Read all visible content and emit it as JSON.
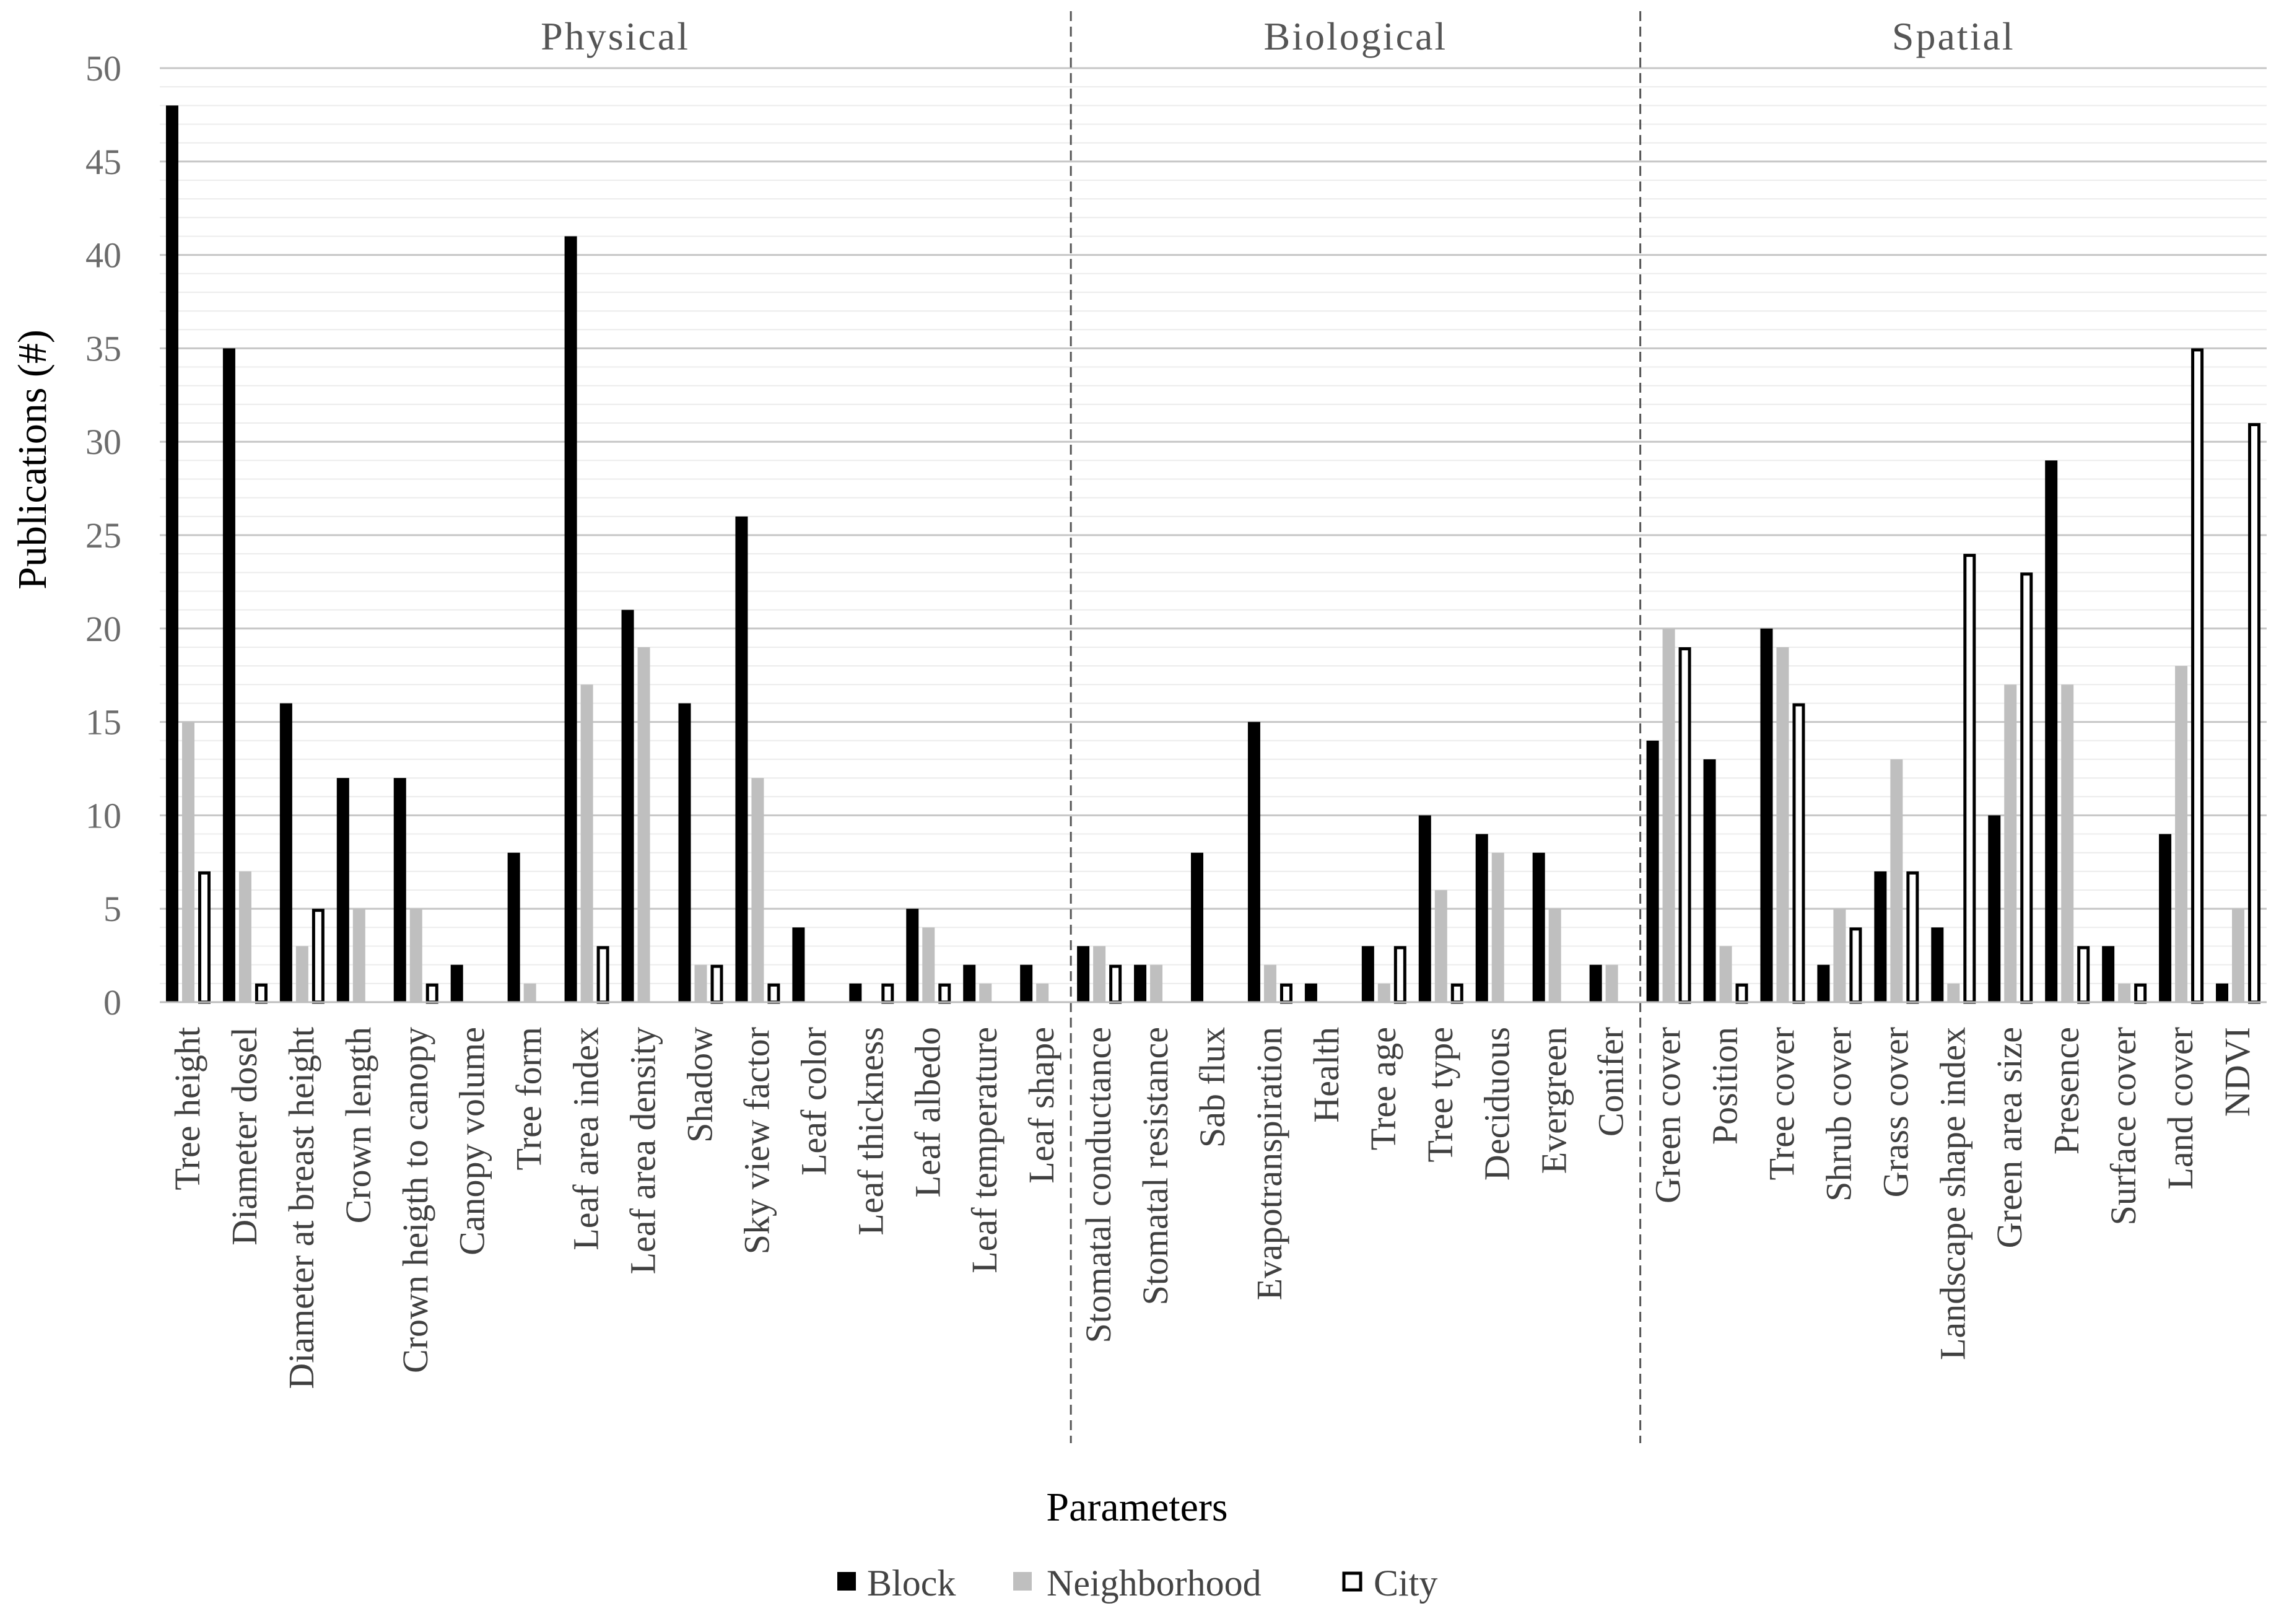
{
  "chart_data": {
    "type": "bar",
    "title": "",
    "xlabel": "Parameters",
    "ylabel": "Publications (#)",
    "ylim": [
      0,
      50
    ],
    "yticks": [
      0,
      5,
      10,
      15,
      20,
      25,
      30,
      35,
      40,
      45,
      50
    ],
    "grid": true,
    "legend_position": "bottom-center",
    "categories": [
      "Tree height",
      "Diameter dosel",
      "Diameter at breast height",
      "Crown length",
      "Crown heigth to canopy",
      "Canopy volume",
      "Tree form",
      "Leaf area index",
      "Leaf area density",
      "Shadow",
      "Sky view factor",
      "Leaf color",
      "Leaf thickness",
      "Leaf albedo",
      "Leaf temperature",
      "Leaf shape",
      "Stomatal conductance",
      "Stomatal resistance",
      "Sab flux",
      "Evapotranspiration",
      "Health",
      "Tree age",
      "Tree type",
      "Deciduous",
      "Evergreen",
      "Conifer",
      "Green cover",
      "Position",
      "Tree cover",
      "Shrub cover",
      "Grass cover",
      "Landscape shape index",
      "Green area size",
      "Presence",
      "Surface cover",
      "Land cover",
      "NDVI"
    ],
    "series": [
      {
        "name": "Block",
        "color": "#000000",
        "values": [
          48,
          35,
          16,
          12,
          12,
          2,
          8,
          41,
          21,
          16,
          26,
          4,
          1,
          5,
          2,
          2,
          3,
          2,
          8,
          15,
          1,
          3,
          10,
          9,
          8,
          2,
          14,
          13,
          20,
          2,
          7,
          4,
          10,
          29,
          3,
          9,
          1
        ]
      },
      {
        "name": "Neighborhood",
        "color": "#bfbfbf",
        "values": [
          15,
          7,
          3,
          5,
          5,
          0,
          1,
          17,
          19,
          2,
          12,
          0,
          0,
          4,
          1,
          1,
          3,
          2,
          0,
          2,
          0,
          1,
          6,
          8,
          5,
          2,
          20,
          3,
          19,
          5,
          13,
          1,
          17,
          17,
          1,
          18,
          5
        ]
      },
      {
        "name": "City",
        "color": "#ffffff",
        "values": [
          7,
          1,
          5,
          0,
          1,
          0,
          0,
          3,
          0,
          2,
          1,
          0,
          1,
          1,
          0,
          0,
          2,
          0,
          0,
          1,
          0,
          3,
          1,
          0,
          0,
          0,
          19,
          1,
          16,
          4,
          7,
          24,
          23,
          3,
          1,
          35,
          31
        ]
      }
    ],
    "groups": [
      {
        "label": "Physical",
        "first_category": 0,
        "last_category": 15
      },
      {
        "label": "Biological",
        "first_category": 16,
        "last_category": 25
      },
      {
        "label": "Spatial",
        "first_category": 26,
        "last_category": 36
      }
    ]
  }
}
